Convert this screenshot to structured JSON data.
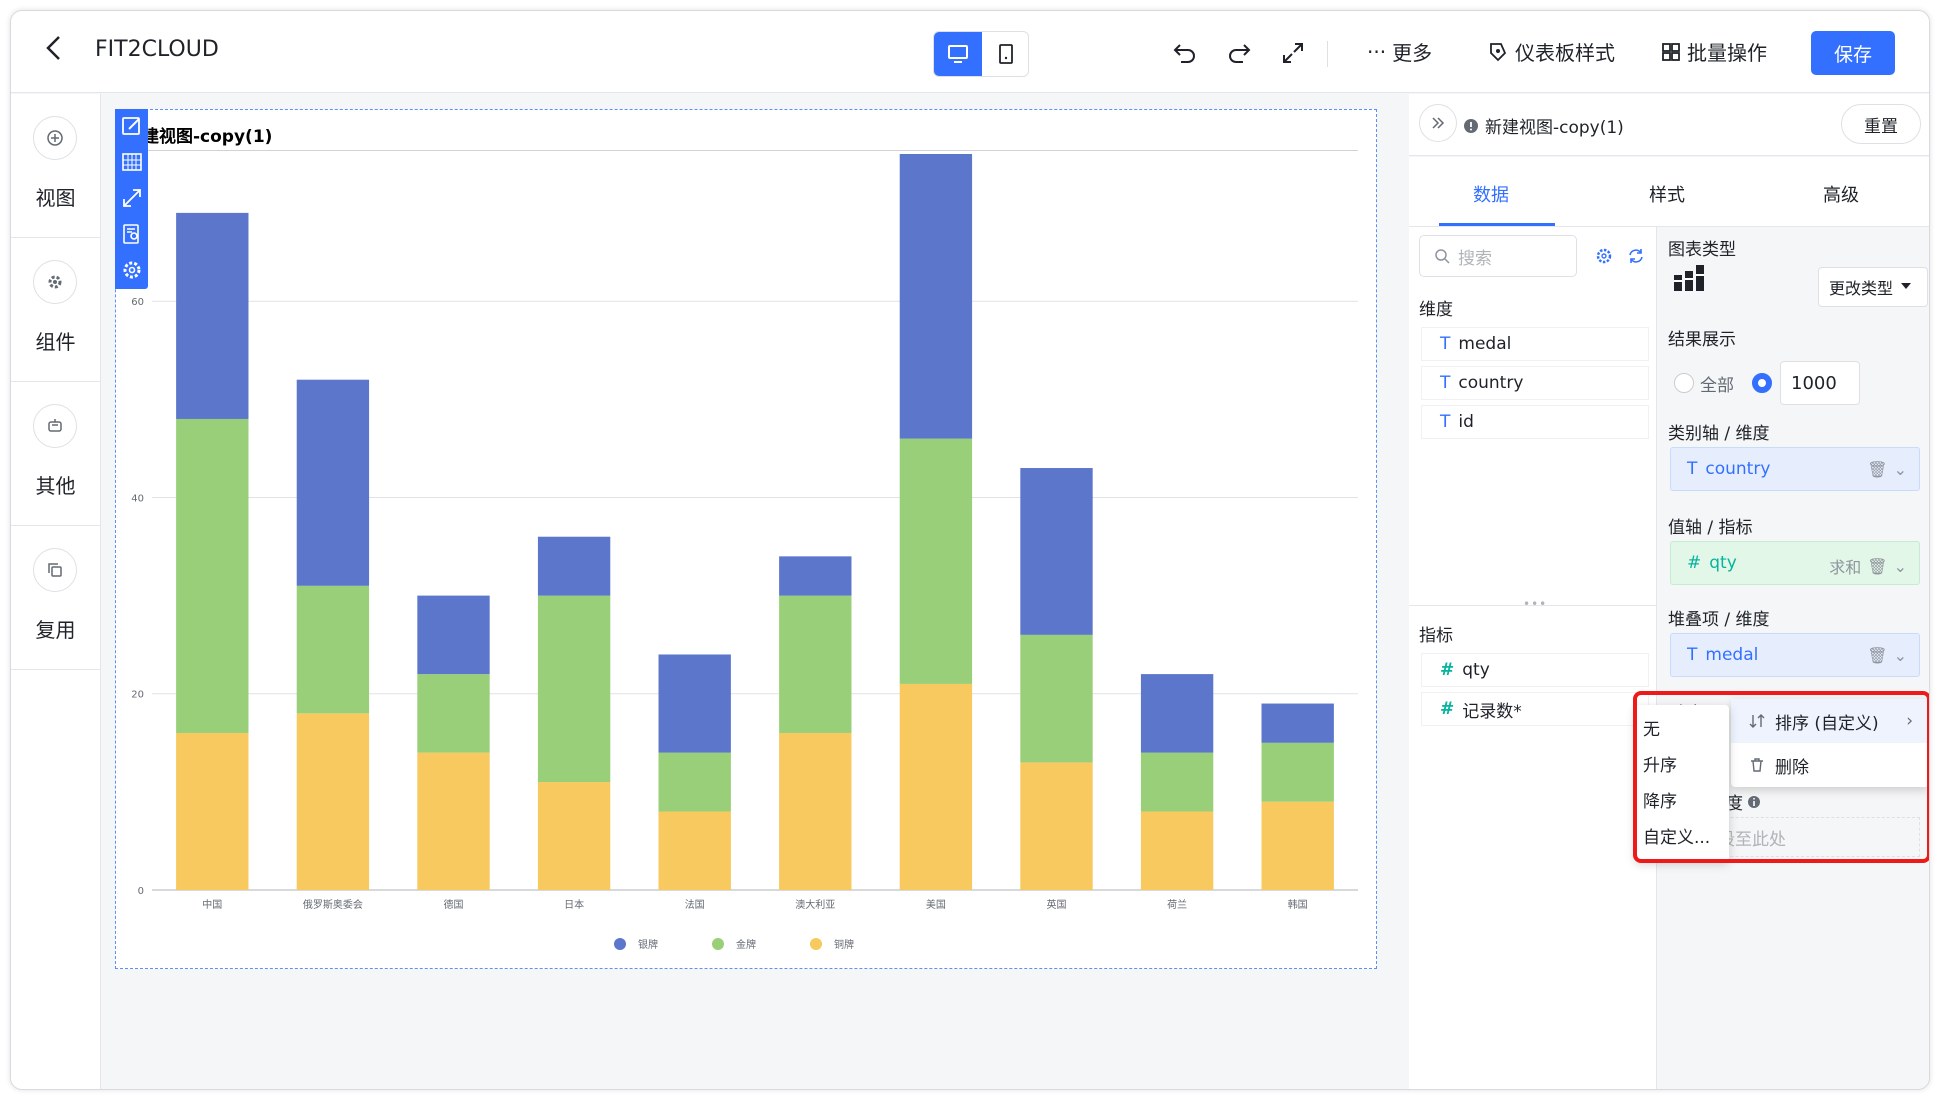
{
  "topbar": {
    "app_title": "FIT2CLOUD",
    "more": "更多",
    "dashboard_style": "仪表板样式",
    "batch": "批量操作",
    "save": "保存"
  },
  "leftrail": [
    {
      "label": "视图"
    },
    {
      "label": "组件"
    },
    {
      "label": "其他"
    },
    {
      "label": "复用"
    }
  ],
  "view": {
    "title": "建视图-copy(1)"
  },
  "chart_data": {
    "type": "bar",
    "stacked": true,
    "categories": [
      "中国",
      "俄罗斯奥委会",
      "德国",
      "日本",
      "法国",
      "澳大利亚",
      "美国",
      "英国",
      "荷兰",
      "韩国"
    ],
    "series": [
      {
        "name": "铜牌",
        "color": "#f7c95e",
        "values": [
          16,
          18,
          14,
          11,
          8,
          16,
          21,
          13,
          8,
          9
        ]
      },
      {
        "name": "金牌",
        "color": "#98cf78",
        "values": [
          32,
          13,
          8,
          19,
          6,
          14,
          25,
          13,
          6,
          6
        ]
      },
      {
        "name": "银牌",
        "color": "#5b76cb",
        "values": [
          21,
          21,
          8,
          6,
          10,
          4,
          29,
          17,
          8,
          4
        ]
      }
    ],
    "legend_order": [
      "银牌",
      "金牌",
      "铜牌"
    ],
    "yticks": [
      0,
      20,
      40,
      60
    ],
    "ylim": [
      0,
      75
    ],
    "grid": true,
    "legend_position": "bottom"
  },
  "panel": {
    "view_name": "新建视图-copy(1)",
    "reset": "重置",
    "tabs": [
      "数据",
      "样式",
      "高级"
    ],
    "search_placeholder": "搜索",
    "dimension_label": "维度",
    "dimensions": [
      "medal",
      "country",
      "id"
    ],
    "metric_label": "指标",
    "metrics": [
      "qty",
      "记录数*"
    ],
    "chart_type_label": "图表类型",
    "change_type": "更改类型",
    "result_label": "结果展示",
    "result_all": "全部",
    "result_count": "1000",
    "category_axis_label": "类别轴 / 维度",
    "category_field": "country",
    "value_axis_label": "值轴 / 指标",
    "value_field": "qty",
    "value_agg": "求和",
    "stack_label": "堆叠项 / 维度",
    "stack_field": "medal",
    "filter_label": "过滤器",
    "drill_label_suffix": "度",
    "drop_hint": "字段至此处"
  },
  "context_menu": {
    "sort": "排序 (自定义)",
    "delete": "删除"
  },
  "sort_menu": [
    "无",
    "升序",
    "降序",
    "自定义..."
  ]
}
